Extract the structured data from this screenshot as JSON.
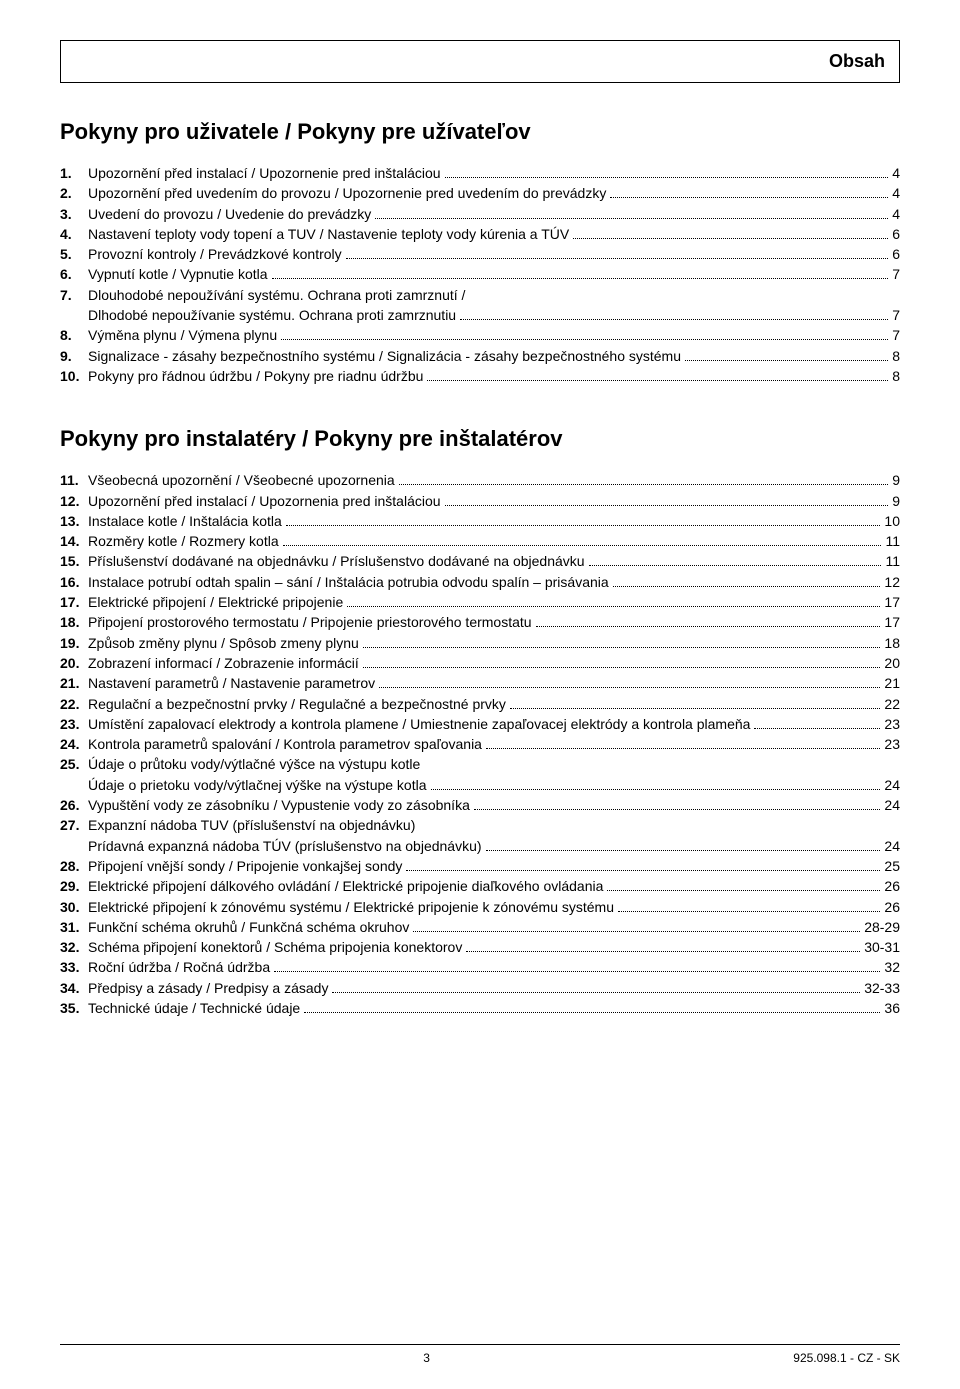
{
  "header": {
    "title": "Obsah"
  },
  "section1": {
    "title": "Pokyny pro uživatele / Pokyny pre užívateľov",
    "items": [
      {
        "n": "1.",
        "t": "Upozornění před instalací / Upozornenie pred inštaláciou",
        "p": "4"
      },
      {
        "n": "2.",
        "t": "Upozornění před uvedením do provozu / Upozornenie pred uvedením do prevádzky",
        "p": "4"
      },
      {
        "n": "3.",
        "t": "Uvedení do provozu / Uvedenie do prevádzky",
        "p": "4"
      },
      {
        "n": "4.",
        "t": "Nastavení teploty vody topení a TUV / Nastavenie teploty vody kúrenia a TÚV",
        "p": "6"
      },
      {
        "n": "5.",
        "t": "Provozní kontroly / Prevádzkové kontroly",
        "p": "6"
      },
      {
        "n": "6.",
        "t": "Vypnutí kotle / Vypnutie kotla",
        "p": "7"
      },
      {
        "n": "7.",
        "t": "Dlouhodobé nepoužívání systému. Ochrana proti zamrznutí /",
        "sub": "Dlhodobé nepoužívanie systému. Ochrana proti zamrznutiu",
        "p": "7"
      },
      {
        "n": "8.",
        "t": "Výměna plynu / Výmena plynu",
        "p": "7"
      },
      {
        "n": "9.",
        "t": "Signalizace - zásahy bezpečnostního systému / Signalizácia - zásahy bezpečnostného systému",
        "p": "8"
      },
      {
        "n": "10.",
        "t": "Pokyny pro řádnou údržbu / Pokyny pre riadnu údržbu",
        "p": "8"
      }
    ]
  },
  "section2": {
    "title": "Pokyny pro instalatéry / Pokyny pre inštalatérov",
    "items": [
      {
        "n": "11.",
        "t": "Všeobecná upozornění / Všeobecné upozornenia",
        "p": "9"
      },
      {
        "n": "12.",
        "t": "Upozornění před instalací / Upozornenia pred inštaláciou",
        "p": "9"
      },
      {
        "n": "13.",
        "t": "Instalace kotle / Inštalácia kotla",
        "p": "10"
      },
      {
        "n": "14.",
        "t": "Rozměry kotle / Rozmery kotla",
        "p": "11"
      },
      {
        "n": "15.",
        "t": "Příslušenství dodávané na objednávku / Príslušenstvo dodávané na objednávku",
        "p": "11"
      },
      {
        "n": "16.",
        "t": "Instalace potrubí odtah spalin – sání / Inštalácia potrubia odvodu spalín – prisávania",
        "p": "12"
      },
      {
        "n": "17.",
        "t": "Elektrické připojení / Elektrické pripojenie",
        "p": "17"
      },
      {
        "n": "18.",
        "t": "Připojení prostorového termostatu / Pripojenie priestorového termostatu",
        "p": "17"
      },
      {
        "n": "19.",
        "t": "Způsob změny plynu / Spôsob zmeny plynu",
        "p": "18"
      },
      {
        "n": "20.",
        "t": "Zobrazení informací / Zobrazenie informácií",
        "p": "20"
      },
      {
        "n": "21.",
        "t": "Nastavení parametrů / Nastavenie parametrov",
        "p": "21"
      },
      {
        "n": "22.",
        "t": "Regulační a bezpečnostní prvky / Regulačné a bezpečnostné prvky",
        "p": "22"
      },
      {
        "n": "23.",
        "t": "Umístění zapalovací elektrody a kontrola plamene / Umiestnenie zapaľovacej elektródy a kontrola plameňa",
        "p": "23"
      },
      {
        "n": "24.",
        "t": "Kontrola parametrů spalování / Kontrola parametrov spaľovania",
        "p": "23"
      },
      {
        "n": "25.",
        "t": "Údaje o průtoku vody/výtlačné výšce na výstupu kotle",
        "sub": "Údaje o prietoku vody/výtlačnej výške na výstupe kotla",
        "p": "24"
      },
      {
        "n": "26.",
        "t": "Vypuštění vody ze zásobníku / Vypustenie vody zo zásobníka",
        "p": "24"
      },
      {
        "n": "27.",
        "t": "Expanzní nádoba TUV (příslušenství na objednávku)",
        "sub": "Prídavná expanzná nádoba TÚV (príslušenstvo na objednávku)",
        "p": "24"
      },
      {
        "n": "28.",
        "t": "Připojení vnější sondy / Pripojenie vonkajšej sondy",
        "p": "25"
      },
      {
        "n": "29.",
        "t": "Elektrické připojení dálkového ovládání / Elektrické pripojenie diaľkového ovládania",
        "p": "26"
      },
      {
        "n": "30.",
        "t": "Elektrické připojení k zónovému systému / Elektrické pripojenie k zónovému systému",
        "p": "26"
      },
      {
        "n": "31.",
        "t": "Funkční schéma okruhů / Funkčná schéma okruhov",
        "p": "28-29"
      },
      {
        "n": "32.",
        "t": "Schéma připojení konektorů / Schéma pripojenia konektorov",
        "p": "30-31"
      },
      {
        "n": "33.",
        "t": "Roční údržba / Ročná údržba",
        "p": "32"
      },
      {
        "n": "34.",
        "t": "Předpisy a zásady / Predpisy a zásady",
        "p": "32-33"
      },
      {
        "n": "35.",
        "t": "Technické údaje / Technické údaje",
        "p": "36"
      }
    ]
  },
  "footer": {
    "page": "3",
    "doc": "925.098.1 - CZ - SK"
  }
}
